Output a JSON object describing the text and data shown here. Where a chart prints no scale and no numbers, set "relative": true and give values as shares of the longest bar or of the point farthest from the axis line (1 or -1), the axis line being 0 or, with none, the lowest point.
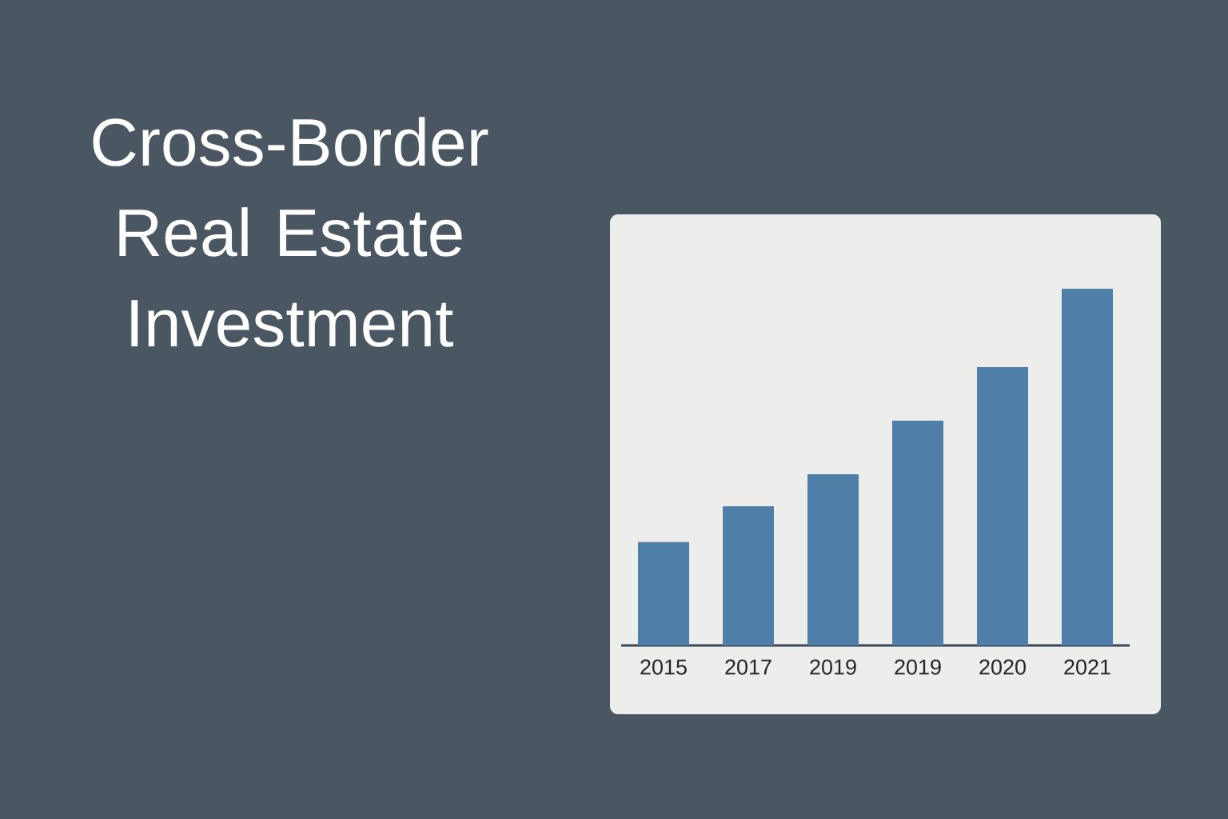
{
  "chart_data": {
    "type": "bar",
    "title": "Cross-Border Real Estate Investment",
    "categories": [
      "2015",
      "2017",
      "2019",
      "2019",
      "2020",
      "2021"
    ],
    "values": [
      0.29,
      0.39,
      0.48,
      0.63,
      0.78,
      1.0
    ],
    "color": "#4f7fa9",
    "relative": true
  }
}
